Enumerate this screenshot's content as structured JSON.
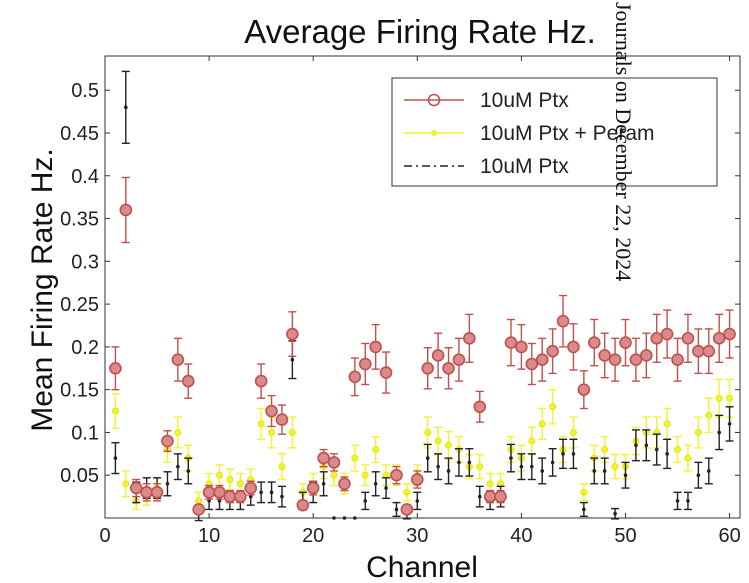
{
  "chart_data": {
    "type": "scatter",
    "title": "Average Firing Rate Hz.",
    "xlabel": "Channel",
    "ylabel": "Mean Firing Rate Hz.",
    "xlim": [
      0,
      61
    ],
    "ylim": [
      0,
      0.54
    ],
    "xticks": [
      "0",
      "10",
      "20",
      "30",
      "40",
      "50",
      "60"
    ],
    "yticks": [
      "0.05",
      "0.1",
      "0.15",
      "0.2",
      "0.25",
      "0.3",
      "0.35",
      "0.4",
      "0.45",
      "0.5"
    ],
    "legend_position": "top-right",
    "grid": false,
    "x": [
      1,
      2,
      3,
      4,
      5,
      6,
      7,
      8,
      9,
      10,
      11,
      12,
      13,
      14,
      15,
      16,
      17,
      18,
      19,
      20,
      21,
      22,
      23,
      24,
      25,
      26,
      27,
      28,
      29,
      30,
      31,
      32,
      33,
      34,
      35,
      36,
      37,
      38,
      39,
      40,
      41,
      42,
      43,
      44,
      45,
      46,
      47,
      48,
      49,
      50,
      51,
      52,
      53,
      54,
      55,
      56,
      57,
      58,
      59,
      60
    ],
    "series": [
      {
        "name": "10uM Ptx",
        "color": "#c0504d",
        "marker": "circle",
        "values": [
          0.175,
          0.36,
          0.035,
          0.03,
          0.03,
          0.09,
          0.185,
          0.16,
          0.01,
          0.03,
          0.03,
          0.025,
          0.025,
          0.035,
          0.16,
          0.125,
          0.115,
          0.215,
          0.015,
          0.035,
          0.07,
          0.065,
          0.04,
          0.165,
          0.18,
          0.2,
          0.17,
          0.05,
          0.01,
          0.045,
          0.175,
          0.19,
          0.175,
          0.185,
          0.21,
          0.13,
          0.025,
          0.025,
          0.205,
          0.2,
          0.18,
          0.185,
          0.195,
          0.23,
          0.2,
          0.15,
          0.205,
          0.19,
          0.185,
          0.205,
          0.185,
          0.19,
          0.21,
          0.215,
          0.185,
          0.21,
          0.195,
          0.195,
          0.21,
          0.215
        ],
        "errors": [
          0.025,
          0.038,
          0.01,
          0.01,
          0.01,
          0.012,
          0.025,
          0.02,
          0.005,
          0.008,
          0.008,
          0.007,
          0.007,
          0.008,
          0.02,
          0.018,
          0.017,
          0.026,
          0.005,
          0.008,
          0.01,
          0.01,
          0.008,
          0.022,
          0.024,
          0.026,
          0.024,
          0.01,
          0.005,
          0.01,
          0.024,
          0.026,
          0.024,
          0.025,
          0.028,
          0.018,
          0.007,
          0.007,
          0.027,
          0.026,
          0.024,
          0.025,
          0.026,
          0.03,
          0.027,
          0.022,
          0.027,
          0.026,
          0.025,
          0.027,
          0.025,
          0.026,
          0.028,
          0.028,
          0.025,
          0.028,
          0.026,
          0.026,
          0.028,
          0.028
        ]
      },
      {
        "name": "10uM Ptx + Peram",
        "color": "#f2f230",
        "marker": "star",
        "values": [
          0.125,
          0.04,
          0.02,
          0.025,
          0.035,
          0.08,
          0.1,
          0.07,
          0.02,
          0.04,
          0.05,
          0.045,
          0.04,
          0.045,
          0.11,
          0.1,
          0.06,
          0.1,
          0.03,
          0.04,
          0.06,
          0.05,
          0.04,
          0.07,
          0.05,
          0.08,
          0.05,
          0.05,
          0.03,
          0.05,
          0.1,
          0.09,
          0.085,
          0.08,
          0.06,
          0.06,
          0.04,
          0.04,
          0.08,
          0.07,
          0.09,
          0.11,
          0.13,
          0.08,
          0.1,
          0.03,
          0.07,
          0.08,
          0.06,
          0.06,
          0.09,
          0.1,
          0.1,
          0.11,
          0.08,
          0.07,
          0.1,
          0.12,
          0.14,
          0.14
        ],
        "errors": [
          0.02,
          0.015,
          0.01,
          0.01,
          0.012,
          0.015,
          0.018,
          0.015,
          0.01,
          0.012,
          0.012,
          0.012,
          0.012,
          0.012,
          0.018,
          0.018,
          0.015,
          0.018,
          0.01,
          0.012,
          0.014,
          0.012,
          0.012,
          0.015,
          0.012,
          0.015,
          0.012,
          0.012,
          0.01,
          0.012,
          0.018,
          0.016,
          0.016,
          0.015,
          0.014,
          0.014,
          0.012,
          0.012,
          0.015,
          0.015,
          0.016,
          0.018,
          0.02,
          0.015,
          0.018,
          0.01,
          0.015,
          0.015,
          0.014,
          0.014,
          0.016,
          0.018,
          0.018,
          0.018,
          0.015,
          0.015,
          0.018,
          0.02,
          0.022,
          0.022
        ]
      },
      {
        "name": "10uM Ptx",
        "color": "#222222",
        "marker": "dot",
        "values": [
          0.07,
          0.48,
          0.03,
          0.035,
          0.035,
          0.04,
          0.06,
          0.055,
          0.005,
          0.02,
          0.02,
          0.02,
          0.02,
          0.025,
          0.03,
          0.03,
          0.025,
          0.185,
          0.02,
          0.03,
          0.04,
          0.0,
          0.0,
          0.0,
          0.02,
          0.04,
          0.035,
          0.01,
          0.005,
          0.02,
          0.07,
          0.06,
          0.055,
          0.065,
          0.065,
          0.025,
          0.02,
          0.025,
          0.07,
          0.06,
          0.06,
          0.055,
          0.065,
          0.075,
          0.075,
          0.01,
          0.055,
          0.055,
          0.005,
          0.05,
          0.085,
          0.085,
          0.08,
          0.075,
          0.02,
          0.02,
          0.05,
          0.055,
          0.1,
          0.11
        ],
        "errors": [
          0.018,
          0.042,
          0.012,
          0.012,
          0.012,
          0.014,
          0.015,
          0.015,
          0.008,
          0.01,
          0.01,
          0.01,
          0.01,
          0.01,
          0.012,
          0.012,
          0.012,
          0.022,
          0.01,
          0.012,
          0.014,
          0.0,
          0.0,
          0.0,
          0.01,
          0.014,
          0.012,
          0.008,
          0.006,
          0.01,
          0.016,
          0.015,
          0.015,
          0.016,
          0.016,
          0.012,
          0.01,
          0.012,
          0.016,
          0.015,
          0.015,
          0.015,
          0.016,
          0.017,
          0.017,
          0.008,
          0.015,
          0.015,
          0.006,
          0.015,
          0.018,
          0.018,
          0.018,
          0.017,
          0.01,
          0.01,
          0.015,
          0.015,
          0.02,
          0.02
        ]
      }
    ]
  },
  "watermark": {
    "text": "Journals on December 22, 2024"
  }
}
